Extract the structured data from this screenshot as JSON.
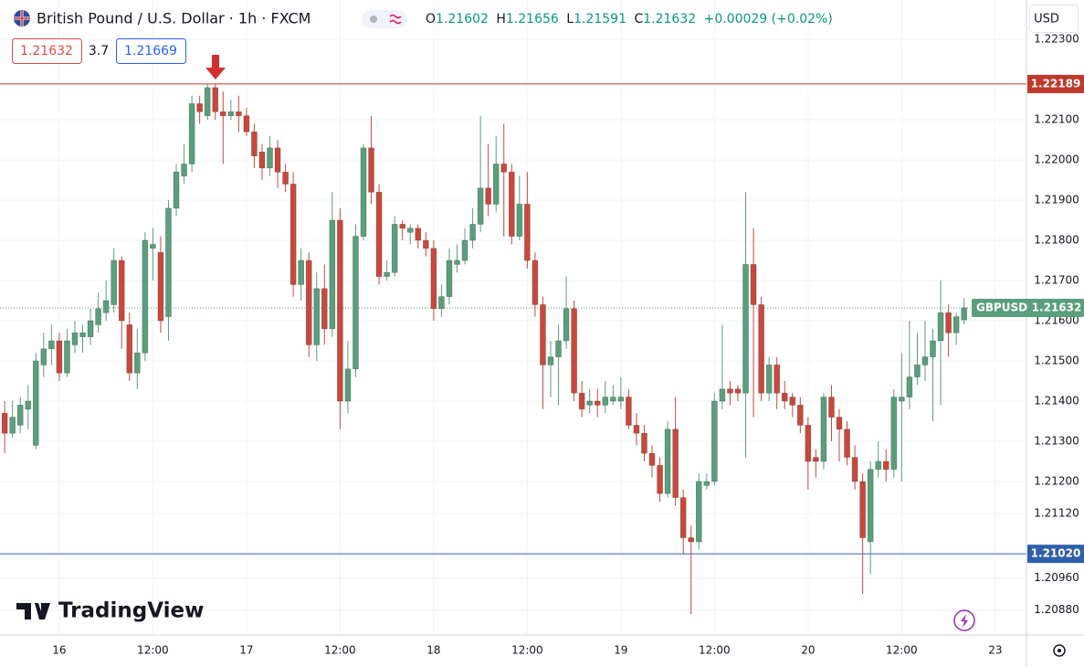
{
  "chart_data": {
    "type": "candlestick",
    "title": "British Pound / U.S. Dollar · 1h · FXCM",
    "ohlc_labels": [
      "O",
      "H",
      "L",
      "C"
    ],
    "ohlc_values": [
      1.21602,
      1.21656,
      1.21591,
      1.21632
    ],
    "change": "+0.00029 (+0.02%)",
    "bid": 1.21632,
    "spread": 3.7,
    "ask": 1.21669,
    "currency": "USD",
    "brand": "TradingView",
    "up_color": "#5a9f7c",
    "down_color": "#c9483b",
    "grid": true,
    "x": [
      -7,
      -6,
      -5,
      -4,
      -3,
      -2,
      -1,
      0,
      1,
      2,
      3,
      4,
      5,
      6,
      7,
      8,
      9,
      10,
      11,
      12,
      13,
      14,
      15,
      16,
      17,
      18,
      19,
      20,
      21,
      22,
      23,
      24,
      25,
      26,
      27,
      28,
      29,
      30,
      31,
      32,
      33,
      34,
      35,
      36,
      37,
      38,
      39,
      40,
      41,
      42,
      43,
      44,
      45,
      46,
      47,
      48,
      49,
      50,
      51,
      52,
      53,
      54,
      55,
      56,
      57,
      58,
      59,
      60,
      61,
      62,
      63,
      64,
      65,
      66,
      67,
      68,
      69,
      70,
      71,
      72,
      73,
      74,
      75,
      76,
      77,
      78,
      79,
      80,
      81,
      82,
      83,
      84,
      85,
      86,
      87,
      88,
      89,
      90,
      91,
      92,
      93,
      94,
      95,
      96,
      97,
      98,
      99,
      100,
      101,
      102,
      103,
      104,
      105,
      106,
      107,
      108,
      109,
      110,
      111,
      112,
      113,
      114,
      115,
      116
    ],
    "open": [
      1.2137,
      1.2132,
      1.2134,
      1.2138,
      1.2129,
      1.2149,
      1.2153,
      1.2155,
      1.2147,
      1.2154,
      1.2156,
      1.2156,
      1.2159,
      1.2162,
      1.2164,
      1.2175,
      1.2159,
      1.2147,
      1.2152,
      1.2178,
      1.2177,
      1.2161,
      1.2188,
      1.2196,
      1.2199,
      1.2214,
      1.2211,
      1.2218,
      1.2212,
      1.2211,
      1.2212,
      1.2211,
      1.2207,
      1.2202,
      1.2198,
      1.2203,
      1.2197,
      1.2194,
      1.2169,
      1.2175,
      1.2154,
      1.2168,
      1.2158,
      1.2185,
      1.214,
      1.2148,
      1.2181,
      1.2203,
      1.2192,
      1.2171,
      1.2172,
      1.2184,
      1.2182,
      1.2183,
      1.218,
      1.2178,
      1.2163,
      1.2166,
      1.2174,
      1.2175,
      1.218,
      1.2184,
      1.2193,
      1.2189,
      1.2199,
      1.2197,
      1.2181,
      1.2189,
      1.2175,
      1.2164,
      1.2149,
      1.2151,
      1.2155,
      1.2163,
      1.2142,
      1.2139,
      1.214,
      1.2139,
      1.214,
      1.214,
      1.2141,
      1.2134,
      1.2132,
      1.2127,
      1.2124,
      1.2117,
      1.2133,
      1.2116,
      1.2106,
      1.2105,
      1.2119,
      1.212,
      1.214,
      1.2143,
      1.2143,
      1.2142,
      1.2174,
      1.2164,
      1.2142,
      1.2149,
      1.2142,
      1.2141,
      1.2139,
      1.2134,
      1.2126,
      1.2125,
      1.2141,
      1.2136,
      1.2133,
      1.2126,
      1.212,
      1.2105,
      1.2123,
      1.2125,
      1.2123,
      1.214,
      1.2141,
      1.2146,
      1.2149,
      1.2151,
      1.2155,
      1.2162,
      1.2157,
      1.21602
    ],
    "high": [
      1.214,
      1.214,
      1.2141,
      1.2144,
      1.2152,
      1.2157,
      1.2159,
      1.2157,
      1.2158,
      1.216,
      1.2159,
      1.2163,
      1.2167,
      1.217,
      1.2178,
      1.2176,
      1.2162,
      1.2158,
      1.2182,
      1.2183,
      1.2181,
      1.219,
      1.2199,
      1.2204,
      1.2216,
      1.2216,
      1.2219,
      1.2219,
      1.2217,
      1.2215,
      1.2216,
      1.2213,
      1.2209,
      1.2204,
      1.2206,
      1.2205,
      1.2199,
      1.2197,
      1.2178,
      1.2177,
      1.2172,
      1.2174,
      1.2192,
      1.2188,
      1.2155,
      1.2184,
      1.2204,
      1.2211,
      1.2194,
      1.2175,
      1.2186,
      1.2185,
      1.2184,
      1.2184,
      1.2182,
      1.218,
      1.2169,
      1.2178,
      1.2179,
      1.2183,
      1.2188,
      1.2211,
      1.2204,
      1.2206,
      1.2209,
      1.2199,
      1.2196,
      1.2197,
      1.2177,
      1.2166,
      1.2155,
      1.2159,
      1.2171,
      1.2165,
      1.2145,
      1.2143,
      1.2143,
      1.2145,
      1.2144,
      1.2146,
      1.2143,
      1.2137,
      1.2134,
      1.2129,
      1.2126,
      1.2135,
      1.2141,
      1.2118,
      1.2109,
      1.2122,
      1.2122,
      1.2142,
      1.2159,
      1.2145,
      1.2144,
      1.2192,
      1.2183,
      1.2166,
      1.2151,
      1.2151,
      1.2145,
      1.2142,
      1.2141,
      1.2136,
      1.2128,
      1.2142,
      1.2144,
      1.2138,
      1.2135,
      1.2129,
      1.2122,
      1.2125,
      1.213,
      1.2128,
      1.2143,
      1.2152,
      1.216,
      1.2157,
      1.216,
      1.2158,
      1.217,
      1.2164,
      1.2162,
      1.21656
    ],
    "low": [
      1.2127,
      1.2131,
      1.2132,
      1.2133,
      1.2128,
      1.2146,
      1.2149,
      1.2145,
      1.2146,
      1.2152,
      1.2152,
      1.2154,
      1.2157,
      1.216,
      1.2162,
      1.2153,
      1.2145,
      1.2143,
      1.215,
      1.217,
      1.2157,
      1.2155,
      1.2186,
      1.2194,
      1.2197,
      1.2209,
      1.221,
      1.221,
      1.2199,
      1.221,
      1.2207,
      1.2206,
      1.2198,
      1.2195,
      1.2196,
      1.2193,
      1.2192,
      1.2166,
      1.2165,
      1.2151,
      1.215,
      1.2154,
      1.2156,
      1.2133,
      1.2137,
      1.2146,
      1.218,
      1.2189,
      1.2169,
      1.217,
      1.2171,
      1.218,
      1.2179,
      1.2178,
      1.2176,
      1.216,
      1.2161,
      1.2164,
      1.2172,
      1.2174,
      1.2178,
      1.2182,
      1.2186,
      1.2187,
      1.2181,
      1.2179,
      1.218,
      1.2173,
      1.2161,
      1.2138,
      1.2141,
      1.2139,
      1.2153,
      1.214,
      1.2136,
      1.2137,
      1.2136,
      1.2137,
      1.2139,
      1.2138,
      1.2133,
      1.2129,
      1.2125,
      1.2121,
      1.2115,
      1.2116,
      1.2114,
      1.2102,
      1.2087,
      1.2103,
      1.2118,
      1.2119,
      1.2138,
      1.2139,
      1.214,
      1.2126,
      1.2136,
      1.214,
      1.214,
      1.2138,
      1.2138,
      1.2136,
      1.2132,
      1.2118,
      1.2121,
      1.2123,
      1.213,
      1.2125,
      1.2124,
      1.2118,
      1.2092,
      1.2097,
      1.2121,
      1.212,
      1.2121,
      1.212,
      1.2138,
      1.2144,
      1.2145,
      1.2135,
      1.2139,
      1.2151,
      1.2154,
      1.21591
    ],
    "close": [
      1.2132,
      1.2136,
      1.2139,
      1.214,
      1.215,
      1.2153,
      1.2155,
      1.2147,
      1.2155,
      1.2157,
      1.2157,
      1.216,
      1.2163,
      1.2165,
      1.2175,
      1.216,
      1.2147,
      1.2152,
      1.218,
      1.2179,
      1.216,
      1.2188,
      1.2197,
      1.2199,
      1.2214,
      1.2212,
      1.2218,
      1.2212,
      1.2211,
      1.2212,
      1.2211,
      1.2207,
      1.2201,
      1.2198,
      1.2203,
      1.2197,
      1.2194,
      1.2169,
      1.2175,
      1.2154,
      1.2168,
      1.2158,
      1.2185,
      1.214,
      1.2148,
      1.2181,
      1.2203,
      1.2192,
      1.2171,
      1.2172,
      1.2184,
      1.2183,
      1.2183,
      1.218,
      1.2178,
      1.2163,
      1.2166,
      1.2175,
      1.2175,
      1.218,
      1.2184,
      1.2193,
      1.2189,
      1.2199,
      1.2197,
      1.2181,
      1.2189,
      1.2175,
      1.2164,
      1.2149,
      1.2151,
      1.2155,
      1.2163,
      1.2142,
      1.2138,
      1.214,
      1.2139,
      1.2141,
      1.2141,
      1.2141,
      1.2134,
      1.2132,
      1.2127,
      1.2124,
      1.2117,
      1.2133,
      1.2116,
      1.2106,
      1.2105,
      1.212,
      1.212,
      1.214,
      1.2143,
      1.2142,
      1.2142,
      1.2174,
      1.2164,
      1.2142,
      1.2149,
      1.2142,
      1.214,
      1.2139,
      1.2134,
      1.2125,
      1.2125,
      1.2141,
      1.2136,
      1.2133,
      1.2126,
      1.212,
      1.2106,
      1.2123,
      1.2125,
      1.2123,
      1.2141,
      1.2141,
      1.2146,
      1.2149,
      1.2151,
      1.2155,
      1.2162,
      1.2157,
      1.2161,
      1.21632
    ],
    "xlim": [
      -7.6,
      124
    ],
    "ylim": [
      1.20818,
      1.22398
    ],
    "xticks": [
      {
        "value": 0,
        "label": "16"
      },
      {
        "value": 12,
        "label": "12:00"
      },
      {
        "value": 24,
        "label": "17"
      },
      {
        "value": 36,
        "label": "12:00"
      },
      {
        "value": 48,
        "label": "18"
      },
      {
        "value": 60,
        "label": "12:00"
      },
      {
        "value": 72,
        "label": "19"
      },
      {
        "value": 84,
        "label": "12:00"
      },
      {
        "value": 96,
        "label": "20"
      },
      {
        "value": 108,
        "label": "12:00"
      },
      {
        "value": 120,
        "label": "23"
      }
    ],
    "yticks": [
      {
        "value": 1.223,
        "label": "1.22300"
      },
      {
        "value": 1.221,
        "label": "1.22100"
      },
      {
        "value": 1.22,
        "label": "1.22000"
      },
      {
        "value": 1.219,
        "label": "1.21900"
      },
      {
        "value": 1.218,
        "label": "1.21800"
      },
      {
        "value": 1.217,
        "label": "1.21700"
      },
      {
        "value": 1.216,
        "label": "1.21600"
      },
      {
        "value": 1.215,
        "label": "1.21500"
      },
      {
        "value": 1.214,
        "label": "1.21400"
      },
      {
        "value": 1.213,
        "label": "1.21300"
      },
      {
        "value": 1.212,
        "label": "1.21200"
      },
      {
        "value": 1.2112,
        "label": "1.21120"
      },
      {
        "value": 1.2096,
        "label": "1.20960"
      },
      {
        "value": 1.2088,
        "label": "1.20880"
      }
    ],
    "price_levels": [
      {
        "value": 1.22189,
        "label": "1.22189",
        "color": "#c0392b"
      },
      {
        "value": 1.2102,
        "label": "1.21020",
        "color": "#2f5fa8"
      }
    ],
    "last_price": {
      "symbol": "GBPUSD",
      "value": 1.21632,
      "label": "1.21632",
      "color": "#5a9f7c"
    }
  }
}
